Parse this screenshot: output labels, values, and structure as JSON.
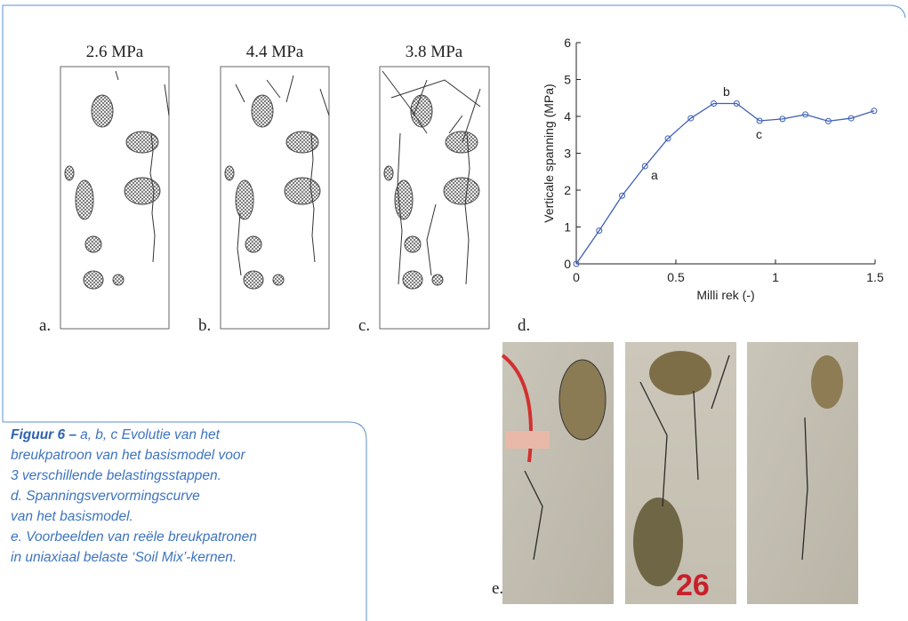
{
  "panels": [
    {
      "label": "a.",
      "stress": "2.6 MPa"
    },
    {
      "label": "b.",
      "stress": "4.4 MPa"
    },
    {
      "label": "c.",
      "stress": "3.8 MPa"
    }
  ],
  "chart_data": {
    "type": "line",
    "panel_label": "d.",
    "xlabel": "Milli rek (-)",
    "ylabel": "Verticale spanning (MPa)",
    "x": [
      0,
      0.115,
      0.23,
      0.345,
      0.46,
      0.575,
      0.69,
      0.805,
      0.92,
      1.035,
      1.15,
      1.265,
      1.38,
      1.495
    ],
    "series": [
      {
        "color": "#3f5fb5",
        "values": [
          0,
          0.9,
          1.85,
          2.65,
          3.4,
          3.95,
          4.35,
          4.35,
          3.88,
          3.93,
          4.05,
          3.87,
          3.95,
          4.15
        ]
      }
    ],
    "xlim": [
      0,
      1.5
    ],
    "ylim": [
      0,
      6
    ],
    "xticks": [
      0,
      0.5,
      1,
      1.5
    ],
    "yticks": [
      0,
      1,
      2,
      3,
      4,
      5,
      6
    ],
    "annotations": [
      "a",
      "b",
      "c"
    ]
  },
  "photos_label": "e.",
  "caption": {
    "title": "Figuur 6 –",
    "lines": [
      "a, b, c Evolutie van het",
      "breukpatroon van het basismodel voor",
      "3 verschillende belastingsstappen.",
      "d. Spanningsvervormingscurve",
      "van het basismodel.",
      "e. Voorbeelden van reële breukpatronen",
      "in uniaxiaal belaste ‘Soil Mix’-kernen."
    ]
  }
}
